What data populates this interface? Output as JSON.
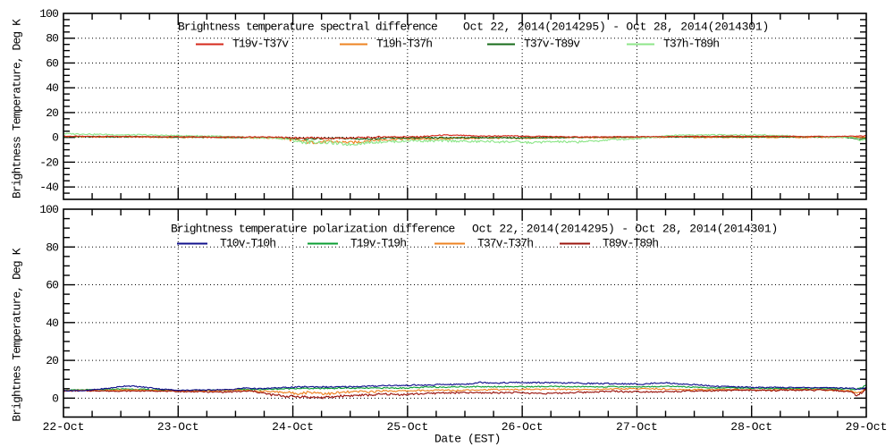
{
  "figure": {
    "xlabel": "Date (EST)",
    "x_tick_labels": [
      "22-Oct",
      "23-Oct",
      "24-Oct",
      "25-Oct",
      "26-Oct",
      "27-Oct",
      "28-Oct",
      "29-Oct"
    ],
    "background": "#ffffff",
    "axis_color": "#000000",
    "text_color": "#000000"
  },
  "chart_data": [
    {
      "type": "line",
      "title": "Brightness temperature spectral difference",
      "date_range": "Oct 22, 2014(2014295) - Oct 28, 2014(2014301)",
      "ylabel": "Brightness Temperature, Deg K",
      "ylim": [
        -50,
        100
      ],
      "yticks": [
        100,
        80,
        60,
        40,
        20,
        0,
        -20,
        -40
      ],
      "x_start_day": "22-Oct",
      "x_end_day": "29-Oct",
      "grid": "dotted",
      "legend_position": "top-inside",
      "series": [
        {
          "name": "T19v-T37v",
          "color": "#d5281b",
          "noise": 0.45,
          "points": [
            [
              0,
              0.8,
              0.4
            ],
            [
              0.5,
              0.7,
              0.4
            ],
            [
              1,
              0.4,
              0.4
            ],
            [
              1.3,
              0.2,
              0.4
            ],
            [
              1.8,
              0.3,
              0.5
            ],
            [
              1.95,
              -0.2,
              0.7
            ],
            [
              2.2,
              -0.6,
              0.8
            ],
            [
              2.5,
              -0.4,
              0.8
            ],
            [
              2.75,
              0.2,
              0.7
            ],
            [
              3.1,
              0.4,
              0.6
            ],
            [
              3.3,
              1.6,
              0.5
            ],
            [
              3.45,
              1.5,
              0.5
            ],
            [
              3.6,
              1.2,
              0.5
            ],
            [
              4,
              1,
              0.4
            ],
            [
              4.3,
              0.6,
              0.4
            ],
            [
              4.6,
              0.3,
              0.4
            ],
            [
              5,
              0.5,
              0.35
            ],
            [
              5.5,
              0.8,
              0.35
            ],
            [
              6,
              0.8,
              0.3
            ],
            [
              6.5,
              0.8,
              0.3
            ],
            [
              6.85,
              0.8,
              0.3
            ],
            [
              7,
              1.2,
              0.4
            ]
          ]
        },
        {
          "name": "T19h-T37h",
          "color": "#ee8322",
          "noise": 0.5,
          "points": [
            [
              0,
              0.6,
              0.5
            ],
            [
              0.5,
              0.3,
              0.5
            ],
            [
              1,
              0,
              0.5
            ],
            [
              1.5,
              -0.2,
              0.5
            ],
            [
              1.85,
              -0.3,
              0.7
            ],
            [
              2,
              -2.3,
              1.4
            ],
            [
              2.15,
              -3.8,
              1.5
            ],
            [
              2.3,
              -3.2,
              1.5
            ],
            [
              2.45,
              -4.5,
              1.4
            ],
            [
              2.6,
              -3.2,
              1.3
            ],
            [
              2.8,
              -1.9,
              1.1
            ],
            [
              3.1,
              -1.2,
              0.9
            ],
            [
              3.5,
              -0.8,
              0.7
            ],
            [
              4,
              -0.7,
              0.6
            ],
            [
              4.3,
              -0.4,
              0.5
            ],
            [
              4.7,
              -0.1,
              0.4
            ],
            [
              5.2,
              0.1,
              0.4
            ],
            [
              5.7,
              0,
              0.4
            ],
            [
              6.3,
              0.1,
              0.4
            ],
            [
              6.9,
              0,
              0.4
            ],
            [
              7,
              -0.4,
              0.5
            ]
          ]
        },
        {
          "name": "T37v-T89v",
          "color": "#176b1a",
          "noise": 0.4,
          "points": [
            [
              0,
              0.7,
              0.4
            ],
            [
              0.5,
              0.5,
              0.4
            ],
            [
              1,
              0.2,
              0.4
            ],
            [
              1.5,
              0,
              0.4
            ],
            [
              1.9,
              -0.2,
              0.6
            ],
            [
              2.1,
              -1.3,
              0.8
            ],
            [
              2.4,
              -1,
              0.8
            ],
            [
              2.6,
              -1.4,
              0.8
            ],
            [
              2.8,
              -0.6,
              0.7
            ],
            [
              3.2,
              -0.4,
              0.6
            ],
            [
              3.7,
              -0.3,
              0.5
            ],
            [
              4.2,
              -0.2,
              0.4
            ],
            [
              4.6,
              0,
              0.4
            ],
            [
              5,
              0.3,
              0.35
            ],
            [
              5.5,
              0.6,
              0.35
            ],
            [
              6,
              0.5,
              0.3
            ],
            [
              6.4,
              0.4,
              0.3
            ],
            [
              6.8,
              0.3,
              0.3
            ],
            [
              6.93,
              -1.6,
              0.6
            ],
            [
              7,
              -0.6,
              0.5
            ]
          ]
        },
        {
          "name": "T37h-T89h",
          "color": "#8ee68a",
          "noise": 0.7,
          "points": [
            [
              0,
              3,
              0.6
            ],
            [
              0.3,
              2.5,
              0.6
            ],
            [
              0.6,
              2.1,
              0.6
            ],
            [
              1,
              1.6,
              0.6
            ],
            [
              1.3,
              0.8,
              0.6
            ],
            [
              1.6,
              0.1,
              0.6
            ],
            [
              1.85,
              -0.6,
              0.8
            ],
            [
              2,
              -2,
              1.3
            ],
            [
              2.1,
              -3.6,
              1.5
            ],
            [
              2.3,
              -4.2,
              1.5
            ],
            [
              2.5,
              -5.2,
              1.4
            ],
            [
              2.65,
              -3.9,
              1.3
            ],
            [
              2.8,
              -3.1,
              1.2
            ],
            [
              3,
              -2.8,
              1.1
            ],
            [
              3.3,
              -3,
              1.1
            ],
            [
              3.6,
              -3.2,
              1.1
            ],
            [
              3.9,
              -3.4,
              1.1
            ],
            [
              4.1,
              -4,
              1.1
            ],
            [
              4.35,
              -3.6,
              1
            ],
            [
              4.6,
              -3.4,
              1
            ],
            [
              4.75,
              -2.2,
              0.9
            ],
            [
              4.95,
              -1,
              0.8
            ],
            [
              5.1,
              -0.1,
              0.7
            ],
            [
              5.3,
              1.6,
              0.6
            ],
            [
              5.6,
              2.1,
              0.6
            ],
            [
              5.9,
              2,
              0.6
            ],
            [
              6.2,
              1.6,
              0.6
            ],
            [
              6.45,
              0.7,
              0.6
            ],
            [
              6.7,
              0.3,
              0.6
            ],
            [
              6.9,
              0.1,
              0.6
            ],
            [
              6.95,
              -2.6,
              0.9
            ],
            [
              7,
              -1,
              0.9
            ]
          ]
        }
      ]
    },
    {
      "type": "line",
      "title": "Brightness temperature polarization difference",
      "date_range": "Oct 22, 2014(2014295) - Oct 28, 2014(2014301)",
      "ylabel": "Brightnes Temperature, Deg K",
      "ylim": [
        -10,
        100
      ],
      "yticks": [
        100,
        80,
        60,
        40,
        20,
        0
      ],
      "x_start_day": "22-Oct",
      "x_end_day": "29-Oct",
      "grid": "dotted",
      "legend_position": "top-inside",
      "series": [
        {
          "name": "T10v-T10h",
          "color": "#12128e",
          "noise": 0.3,
          "points": [
            [
              0,
              4,
              0.25
            ],
            [
              0.2,
              4.1,
              0.3
            ],
            [
              0.4,
              5.3,
              0.35
            ],
            [
              0.55,
              6.6,
              0.35
            ],
            [
              0.7,
              5.9,
              0.35
            ],
            [
              0.85,
              4.7,
              0.3
            ],
            [
              1,
              4.2,
              0.25
            ],
            [
              1.2,
              4.3,
              0.25
            ],
            [
              1.45,
              4.6,
              0.3
            ],
            [
              1.6,
              5.4,
              0.3
            ],
            [
              1.75,
              5,
              0.3
            ],
            [
              1.9,
              5.5,
              0.35
            ],
            [
              2.1,
              6.1,
              0.4
            ],
            [
              2.4,
              6,
              0.4
            ],
            [
              2.7,
              6.5,
              0.4
            ],
            [
              3,
              6.7,
              0.4
            ],
            [
              3.3,
              7.1,
              0.4
            ],
            [
              3.5,
              7.5,
              0.4
            ],
            [
              3.62,
              8.4,
              0.45
            ],
            [
              3.8,
              8.2,
              0.45
            ],
            [
              4.1,
              8.2,
              0.4
            ],
            [
              4.4,
              8,
              0.4
            ],
            [
              4.7,
              7.7,
              0.4
            ],
            [
              5,
              7.4,
              0.4
            ],
            [
              5.25,
              8.2,
              0.4
            ],
            [
              5.4,
              7.4,
              0.4
            ],
            [
              5.7,
              6.3,
              0.35
            ],
            [
              6,
              5.8,
              0.3
            ],
            [
              6.3,
              5.6,
              0.3
            ],
            [
              6.6,
              5.5,
              0.3
            ],
            [
              6.85,
              5.3,
              0.3
            ],
            [
              6.93,
              4.8,
              0.35
            ],
            [
              7,
              5.5,
              0.35
            ]
          ]
        },
        {
          "name": "T19v-T19h",
          "color": "#0b9e33",
          "noise": 0.28,
          "points": [
            [
              0,
              4.2,
              0.28
            ],
            [
              0.3,
              4.5,
              0.28
            ],
            [
              0.55,
              4.9,
              0.3
            ],
            [
              0.8,
              4.4,
              0.28
            ],
            [
              1,
              4.1,
              0.25
            ],
            [
              1.3,
              4.2,
              0.25
            ],
            [
              1.6,
              4.6,
              0.3
            ],
            [
              1.8,
              4.7,
              0.3
            ],
            [
              2,
              5.1,
              0.35
            ],
            [
              2.5,
              5.3,
              0.35
            ],
            [
              3,
              5.5,
              0.35
            ],
            [
              3.5,
              6,
              0.35
            ],
            [
              4,
              6.2,
              0.35
            ],
            [
              4.5,
              6,
              0.3
            ],
            [
              5,
              6,
              0.3
            ],
            [
              5.3,
              6.3,
              0.3
            ],
            [
              5.5,
              5.7,
              0.3
            ],
            [
              6,
              5.2,
              0.28
            ],
            [
              6.5,
              5,
              0.28
            ],
            [
              6.8,
              4.9,
              0.28
            ],
            [
              6.9,
              4.7,
              0.3
            ],
            [
              6.96,
              5.6,
              0.4
            ],
            [
              7,
              7,
              0.4
            ]
          ]
        },
        {
          "name": "T37v-T37h",
          "color": "#ee8322",
          "noise": 0.45,
          "points": [
            [
              0,
              3.9,
              0.35
            ],
            [
              0.3,
              4,
              0.35
            ],
            [
              0.55,
              4.3,
              0.35
            ],
            [
              0.8,
              4,
              0.35
            ],
            [
              1,
              3.8,
              0.35
            ],
            [
              1.5,
              4.1,
              0.4
            ],
            [
              1.75,
              3.6,
              0.5
            ],
            [
              1.9,
              3,
              0.7
            ],
            [
              2,
              2.6,
              0.9
            ],
            [
              2.15,
              3.1,
              0.9
            ],
            [
              2.35,
              2.4,
              0.9
            ],
            [
              2.6,
              3.5,
              0.7
            ],
            [
              3,
              3.9,
              0.5
            ],
            [
              3.5,
              4.3,
              0.45
            ],
            [
              4,
              4.6,
              0.4
            ],
            [
              4.5,
              4.6,
              0.4
            ],
            [
              5,
              4.9,
              0.4
            ],
            [
              5.5,
              4.6,
              0.4
            ],
            [
              6,
              4.5,
              0.35
            ],
            [
              6.5,
              4.4,
              0.35
            ],
            [
              6.85,
              4.1,
              0.4
            ],
            [
              6.93,
              2.7,
              0.6
            ],
            [
              7,
              5,
              0.5
            ]
          ]
        },
        {
          "name": "T89v-T89h",
          "color": "#9b150e",
          "noise": 0.4,
          "points": [
            [
              0,
              3.8,
              0.3
            ],
            [
              0.3,
              3.8,
              0.3
            ],
            [
              0.6,
              3.9,
              0.3
            ],
            [
              1,
              3.6,
              0.3
            ],
            [
              1.3,
              3.2,
              0.35
            ],
            [
              1.5,
              3.5,
              0.4
            ],
            [
              1.65,
              3.8,
              0.5
            ],
            [
              1.8,
              1.9,
              0.7
            ],
            [
              1.95,
              0.8,
              0.75
            ],
            [
              2.1,
              0.6,
              0.75
            ],
            [
              2.25,
              0.5,
              0.75
            ],
            [
              2.4,
              0.9,
              0.7
            ],
            [
              2.55,
              1.4,
              0.7
            ],
            [
              2.7,
              1.8,
              0.65
            ],
            [
              3,
              2.2,
              0.6
            ],
            [
              3.3,
              2.7,
              0.5
            ],
            [
              3.6,
              3,
              0.5
            ],
            [
              4,
              2.9,
              0.5
            ],
            [
              4.3,
              2.5,
              0.5
            ],
            [
              4.6,
              3.4,
              0.5
            ],
            [
              5,
              3.6,
              0.45
            ],
            [
              5.3,
              3.4,
              0.45
            ],
            [
              5.6,
              3.9,
              0.4
            ],
            [
              6,
              4.1,
              0.4
            ],
            [
              6.4,
              4.2,
              0.4
            ],
            [
              6.7,
              4.3,
              0.4
            ],
            [
              6.85,
              3.5,
              0.5
            ],
            [
              6.92,
              1.6,
              0.7
            ],
            [
              7,
              4.5,
              0.6
            ]
          ]
        }
      ]
    }
  ]
}
